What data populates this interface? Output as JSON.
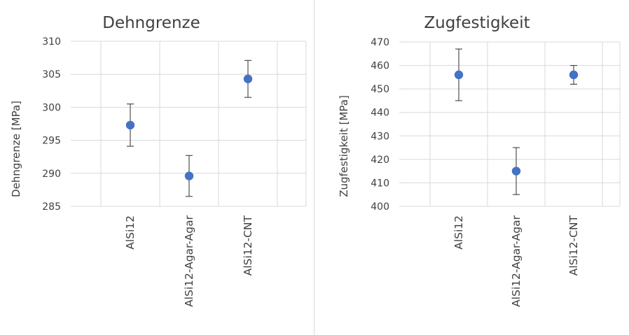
{
  "chart_data": [
    {
      "type": "scatter",
      "title": "Dehngrenze",
      "ylabel": "Dehngrenze [MPa]",
      "xlabel": "",
      "categories": [
        "AlSi12",
        "AlSi12-Agar-Agar",
        "AlSi12-CNT"
      ],
      "values": [
        297.3,
        289.6,
        304.3
      ],
      "error_low": [
        294.1,
        286.5,
        301.5
      ],
      "error_high": [
        300.5,
        292.7,
        307.1
      ],
      "ylim": [
        285,
        310
      ],
      "yticks": [
        285,
        290,
        295,
        300,
        305,
        310
      ],
      "grid": true,
      "marker_color": "#4472c4"
    },
    {
      "type": "scatter",
      "title": "Zugfestigkeit",
      "ylabel": "Zugfestigkeit [MPa]",
      "xlabel": "",
      "categories": [
        "AlSi12",
        "AlSi12-Agar-Agar",
        "AlSi12-CNT"
      ],
      "values": [
        456,
        415,
        456
      ],
      "error_low": [
        445,
        405,
        452
      ],
      "error_high": [
        467,
        425,
        460
      ],
      "ylim": [
        400,
        470
      ],
      "yticks": [
        400,
        410,
        420,
        430,
        440,
        450,
        460,
        470
      ],
      "grid": true,
      "marker_color": "#4472c4"
    }
  ]
}
